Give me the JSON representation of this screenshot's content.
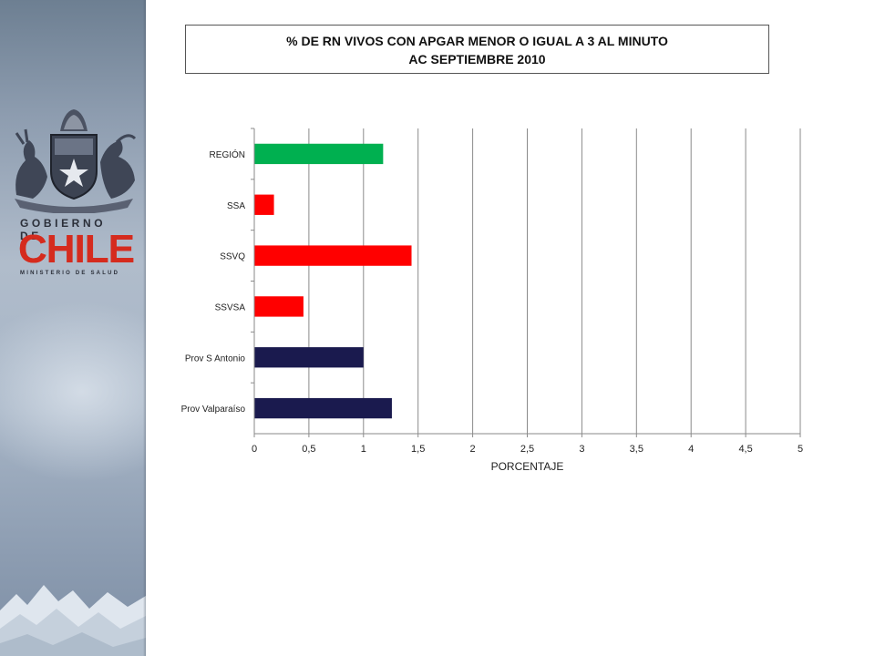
{
  "branding": {
    "gobierno_label": "GOBIERNO DE",
    "chile_word": "CHILE",
    "ministerio_label": "MINISTERIO DE SALUD"
  },
  "title": {
    "line1": "% DE RN VIVOS  CON APGAR MENOR  O IGUAL  A  3 AL MINUTO",
    "line2": "AC SEPTIEMBRE  2010"
  },
  "chart_data": {
    "type": "bar",
    "orientation": "horizontal",
    "categories": [
      "REGIÓN",
      "SSA",
      "SSVQ",
      "SSVSA",
      "Prov S Antonio",
      "Prov Valparaíso"
    ],
    "values": [
      1.18,
      0.18,
      1.44,
      0.45,
      1.0,
      1.26
    ],
    "bar_colors": [
      "#00b050",
      "#ff0000",
      "#ff0000",
      "#ff0000",
      "#1a1a4e",
      "#1a1a4e"
    ],
    "xlabel": "PORCENTAJE",
    "xlim": [
      0,
      5
    ],
    "xticks": [
      0,
      0.5,
      1,
      1.5,
      2,
      2.5,
      3,
      3.5,
      4,
      4.5,
      5
    ],
    "xtick_labels": [
      "0",
      "0,5",
      "1",
      "1,5",
      "2",
      "2,5",
      "3",
      "3,5",
      "4",
      "4,5",
      "5"
    ],
    "grid": "vertical",
    "legend": "none"
  }
}
